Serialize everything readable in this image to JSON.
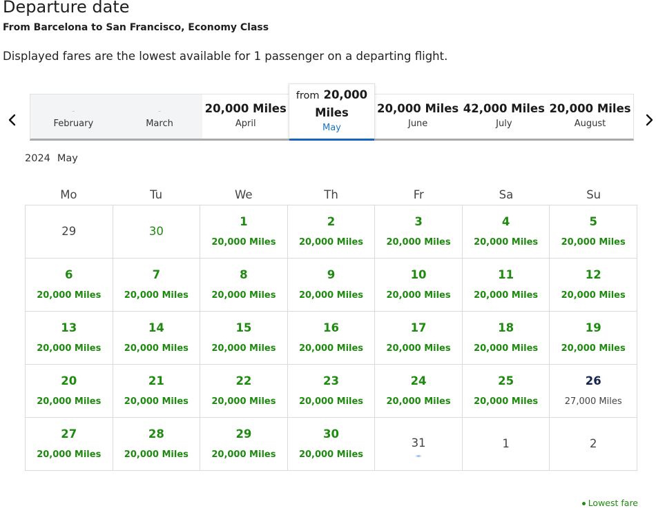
{
  "header": {
    "title": "Departure date",
    "subtitle": "From Barcelona to San Francisco, Economy Class",
    "note": "Displayed fares are the lowest available for 1 passenger on a departing flight."
  },
  "month_strip": {
    "months": [
      {
        "price": "-",
        "name": "February",
        "available": false
      },
      {
        "price": "-",
        "name": "March",
        "available": false
      },
      {
        "price": "20,000 Miles",
        "name": "April",
        "available": true
      },
      {
        "from_label": "from",
        "price_part1": "20,000",
        "price_part2": "Miles",
        "name": "May",
        "selected": true
      },
      {
        "price": "20,000 Miles",
        "name": "June",
        "available": true
      },
      {
        "price": "42,000 Miles",
        "name": "July",
        "available": true
      },
      {
        "price": "20,000 Miles",
        "name": "August",
        "available": true
      }
    ]
  },
  "calendar": {
    "year": "2024",
    "month": "May",
    "weekdays": [
      "Mo",
      "Tu",
      "We",
      "Th",
      "Fr",
      "Sa",
      "Su"
    ],
    "days": [
      {
        "day": "29",
        "fare": "",
        "kind": "other"
      },
      {
        "day": "30",
        "fare": "",
        "kind": "other-low"
      },
      {
        "day": "1",
        "fare": "20,000 Miles",
        "kind": "low"
      },
      {
        "day": "2",
        "fare": "20,000 Miles",
        "kind": "low"
      },
      {
        "day": "3",
        "fare": "20,000 Miles",
        "kind": "low"
      },
      {
        "day": "4",
        "fare": "20,000 Miles",
        "kind": "low"
      },
      {
        "day": "5",
        "fare": "20,000 Miles",
        "kind": "low"
      },
      {
        "day": "6",
        "fare": "20,000 Miles",
        "kind": "low"
      },
      {
        "day": "7",
        "fare": "20,000 Miles",
        "kind": "low"
      },
      {
        "day": "8",
        "fare": "20,000 Miles",
        "kind": "low"
      },
      {
        "day": "9",
        "fare": "20,000 Miles",
        "kind": "low"
      },
      {
        "day": "10",
        "fare": "20,000 Miles",
        "kind": "low"
      },
      {
        "day": "11",
        "fare": "20,000 Miles",
        "kind": "low"
      },
      {
        "day": "12",
        "fare": "20,000 Miles",
        "kind": "low"
      },
      {
        "day": "13",
        "fare": "20,000 Miles",
        "kind": "low"
      },
      {
        "day": "14",
        "fare": "20,000 Miles",
        "kind": "low"
      },
      {
        "day": "15",
        "fare": "20,000 Miles",
        "kind": "low"
      },
      {
        "day": "16",
        "fare": "20,000 Miles",
        "kind": "low"
      },
      {
        "day": "17",
        "fare": "20,000 Miles",
        "kind": "low"
      },
      {
        "day": "18",
        "fare": "20,000 Miles",
        "kind": "low"
      },
      {
        "day": "19",
        "fare": "20,000 Miles",
        "kind": "low"
      },
      {
        "day": "20",
        "fare": "20,000 Miles",
        "kind": "low"
      },
      {
        "day": "21",
        "fare": "20,000 Miles",
        "kind": "low"
      },
      {
        "day": "22",
        "fare": "20,000 Miles",
        "kind": "low"
      },
      {
        "day": "23",
        "fare": "20,000 Miles",
        "kind": "low"
      },
      {
        "day": "24",
        "fare": "20,000 Miles",
        "kind": "low"
      },
      {
        "day": "25",
        "fare": "20,000 Miles",
        "kind": "low"
      },
      {
        "day": "26",
        "fare": "27,000 Miles",
        "kind": "dark"
      },
      {
        "day": "27",
        "fare": "20,000 Miles",
        "kind": "low"
      },
      {
        "day": "28",
        "fare": "20,000 Miles",
        "kind": "low"
      },
      {
        "day": "29",
        "fare": "20,000 Miles",
        "kind": "low"
      },
      {
        "day": "30",
        "fare": "20,000 Miles",
        "kind": "low"
      },
      {
        "day": "31",
        "fare": "",
        "kind": "loading"
      },
      {
        "day": "1",
        "fare": "",
        "kind": "other"
      },
      {
        "day": "2",
        "fare": "",
        "kind": "other"
      }
    ]
  },
  "legend": {
    "label": "Lowest fare"
  },
  "colors": {
    "lowest_fare": "#1e8a0f",
    "selected_month": "#1565c0",
    "highlight_day": "#14264d"
  },
  "icons": {
    "prev": "chevron-left-icon",
    "next": "chevron-right-icon"
  }
}
